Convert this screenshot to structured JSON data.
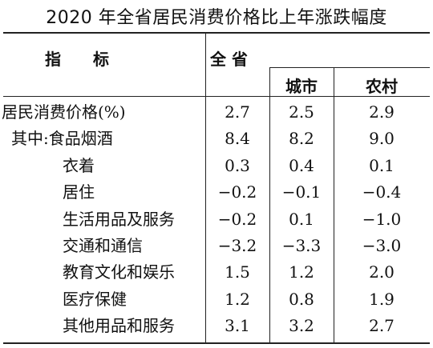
{
  "title": "2020 年全省居民消费价格比上年涨跌幅度",
  "header": {
    "indicator": "指　　标",
    "province": "全 省",
    "urban": "城市",
    "rural": "农村"
  },
  "rows": [
    {
      "label": "居民消费价格(%)",
      "province": "2.7",
      "urban": "2.5",
      "rural": "2.9"
    },
    {
      "label": "其中:食品烟酒",
      "province": "8.4",
      "urban": "8.2",
      "rural": "9.0"
    },
    {
      "label": "衣着",
      "province": "0.3",
      "urban": "0.4",
      "rural": "0.1"
    },
    {
      "label": "居住",
      "province": "−0.2",
      "urban": "−0.1",
      "rural": "−0.4"
    },
    {
      "label": "生活用品及服务",
      "province": "−0.2",
      "urban": "0.1",
      "rural": "−1.0"
    },
    {
      "label": "交通和通信",
      "province": "−3.2",
      "urban": "−3.3",
      "rural": "−3.0"
    },
    {
      "label": "教育文化和娱乐",
      "province": "1.5",
      "urban": "1.2",
      "rural": "2.0"
    },
    {
      "label": "医疗保健",
      "province": "1.2",
      "urban": "0.8",
      "rural": "1.9"
    },
    {
      "label": "其他用品和服务",
      "province": "3.1",
      "urban": "3.2",
      "rural": "2.7"
    }
  ]
}
